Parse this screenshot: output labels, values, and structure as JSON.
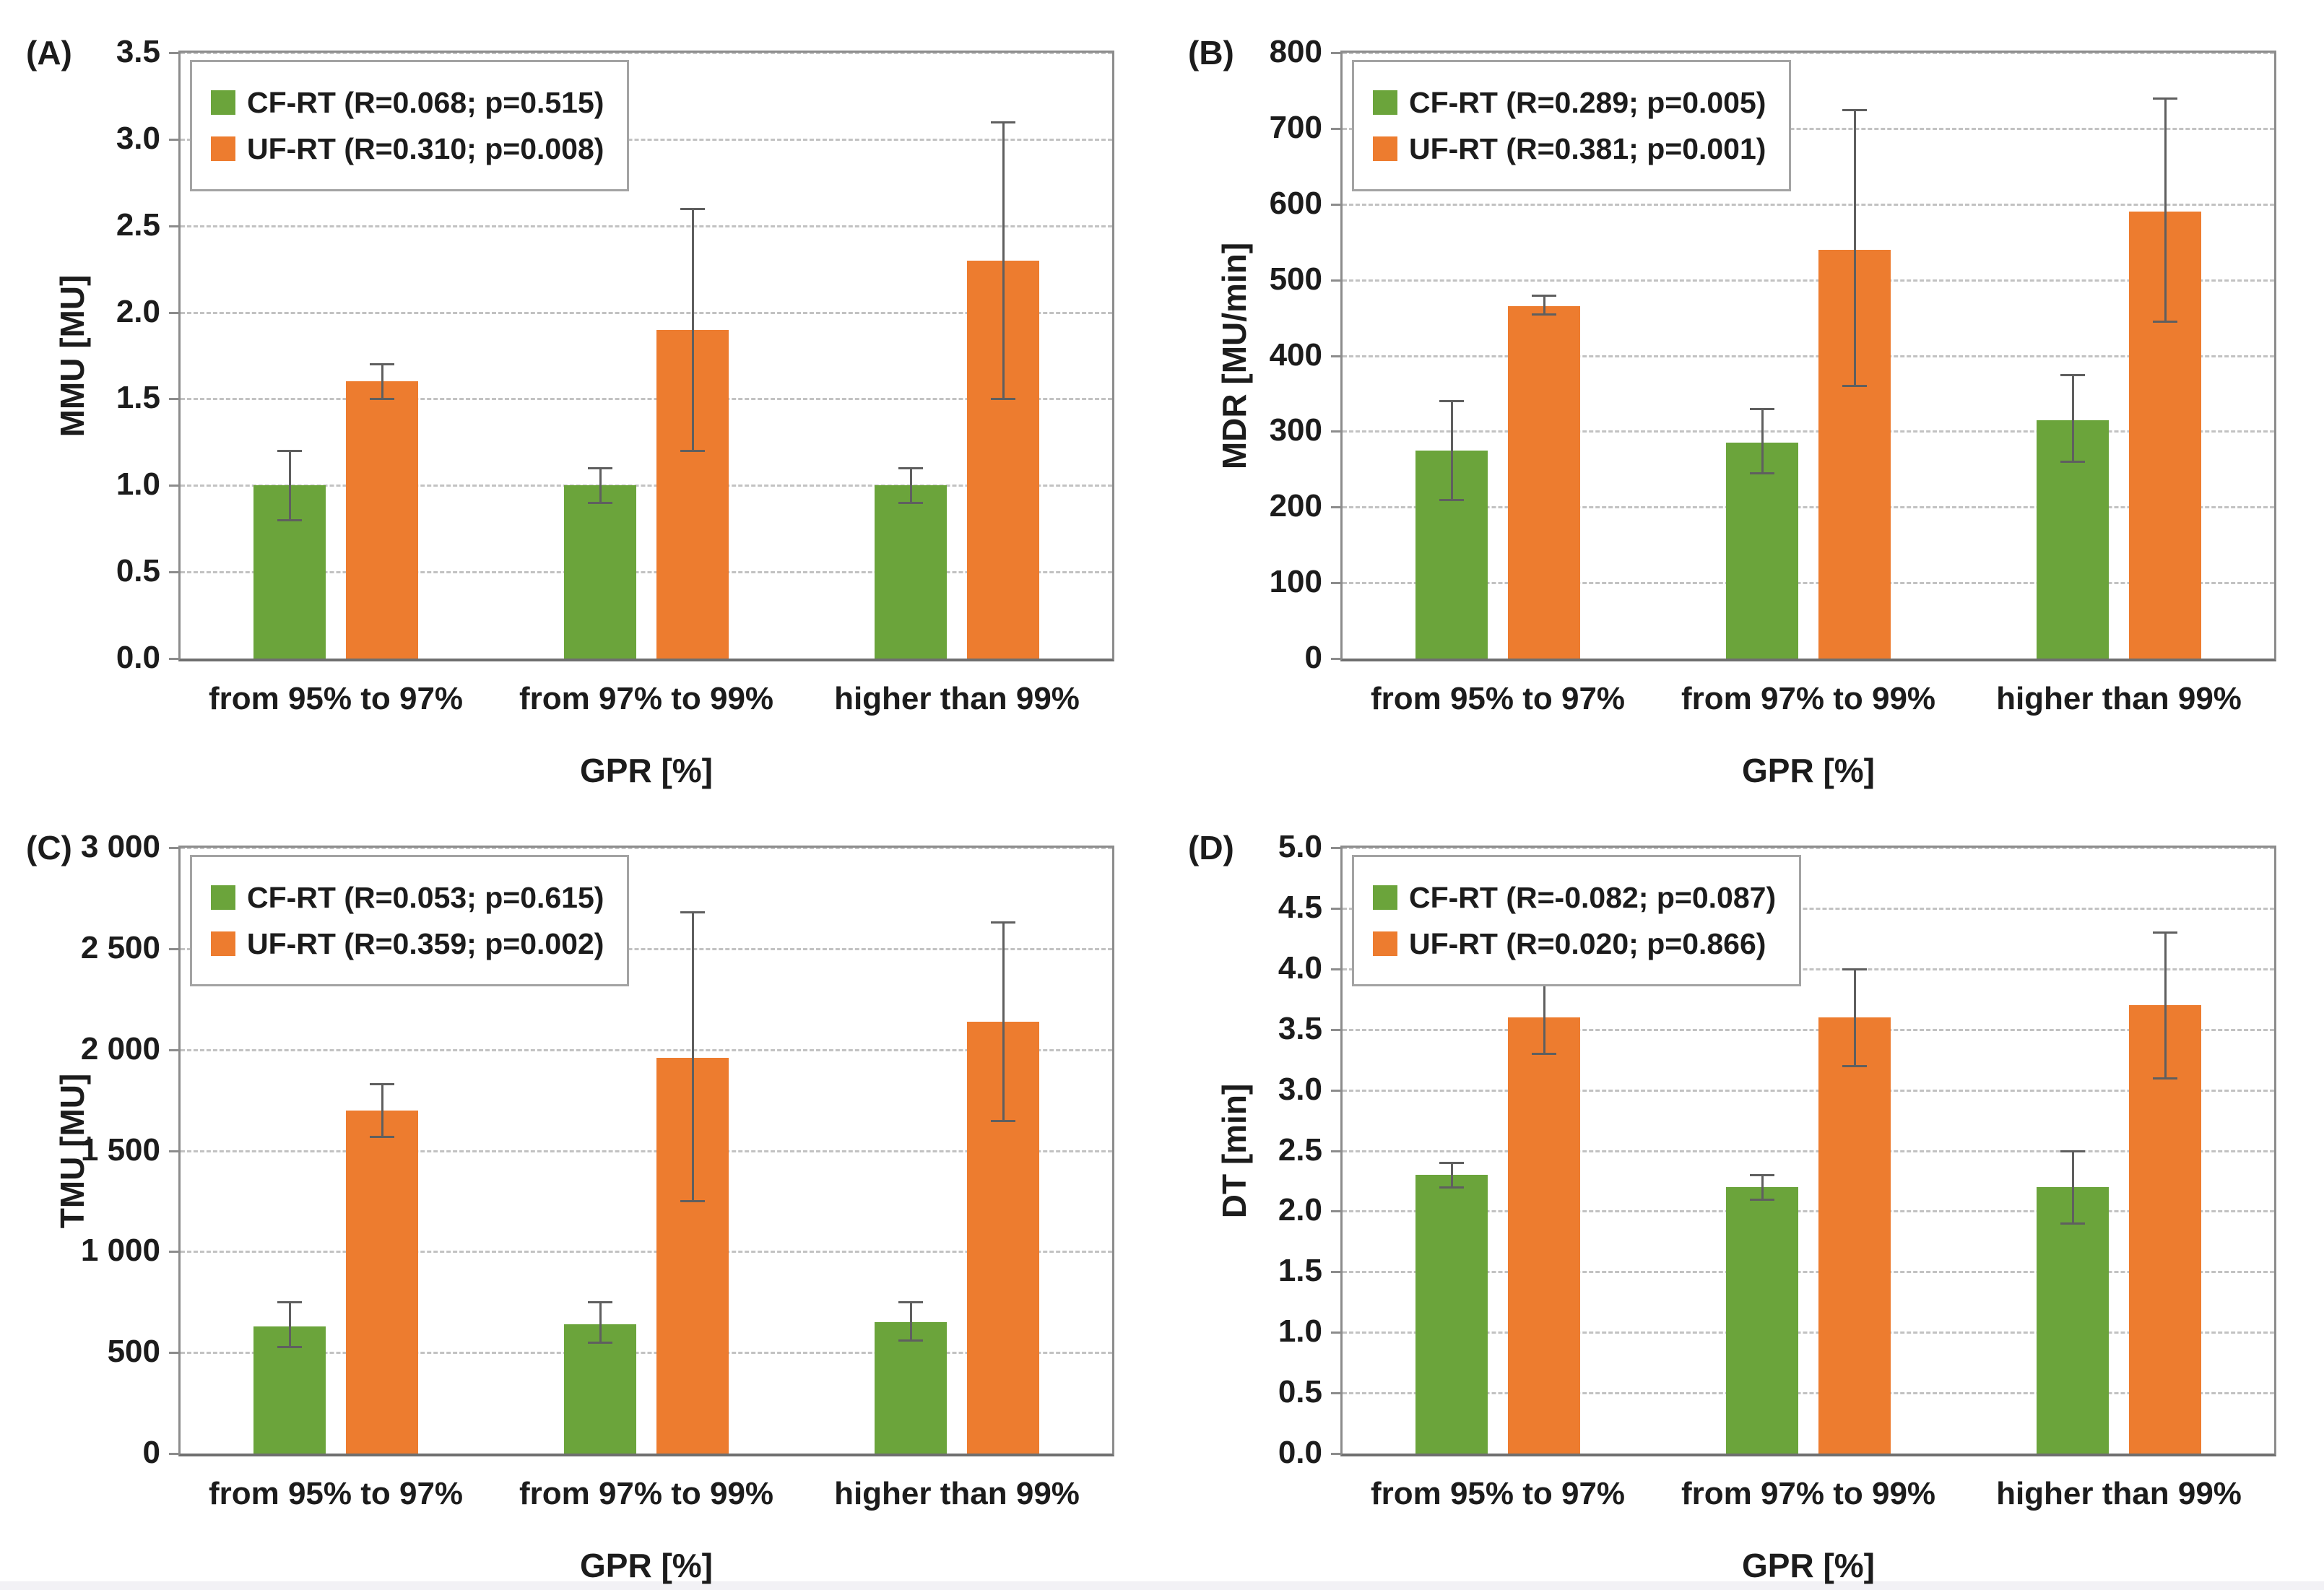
{
  "figure": {
    "x_axis_title": "GPR [%]",
    "x_categories": [
      "from 95% to 97%",
      "from 97% to 99%",
      "higher than 99%"
    ],
    "series_names": [
      "CF-RT",
      "UF-RT"
    ],
    "colors": {
      "cf_rt_green": "#6BA43B",
      "uf_rt_orange": "#ED7C2F",
      "error_bar": "#5F5F5F",
      "axis": "#8C8C8C",
      "gridline": "#C2C2C2",
      "text": "#1C1C1C"
    },
    "grid": "dashed horizontal",
    "legend_position": "top-left inside plot"
  },
  "chart_data": [
    {
      "type": "bar",
      "panel_id": "A",
      "panel_label": "(A)",
      "ylabel": "MMU [MU]",
      "xlabel": "GPR [%]",
      "ylim": [
        0,
        3.5
      ],
      "ytick_step": 0.5,
      "ytick_format": "one_decimal",
      "categories": [
        "from 95% to 97%",
        "from 97% to 99%",
        "higher than 99%"
      ],
      "legend": [
        "CF-RT (R=0.068; p=0.515)",
        "UF-RT (R=0.310; p=0.008)"
      ],
      "series": [
        {
          "name": "CF-RT",
          "values": [
            1.0,
            1.0,
            1.0
          ],
          "err_low": [
            0.8,
            0.9,
            0.9
          ],
          "err_high": [
            1.2,
            1.1,
            1.1
          ]
        },
        {
          "name": "UF-RT",
          "values": [
            1.6,
            1.9,
            2.3
          ],
          "err_low": [
            1.5,
            1.2,
            1.5
          ],
          "err_high": [
            1.7,
            2.6,
            3.1
          ]
        }
      ]
    },
    {
      "type": "bar",
      "panel_id": "B",
      "panel_label": "(B)",
      "ylabel": "MDR [MU/min]",
      "xlabel": "GPR [%]",
      "ylim": [
        0,
        800
      ],
      "ytick_step": 100,
      "ytick_format": "integer",
      "categories": [
        "from 95% to 97%",
        "from 97% to 99%",
        "higher than 99%"
      ],
      "legend": [
        "CF-RT (R=0.289; p=0.005)",
        "UF-RT (R=0.381; p=0.001)"
      ],
      "series": [
        {
          "name": "CF-RT",
          "values": [
            275,
            285,
            315
          ],
          "err_low": [
            210,
            245,
            260
          ],
          "err_high": [
            340,
            330,
            375
          ]
        },
        {
          "name": "UF-RT",
          "values": [
            465,
            540,
            590
          ],
          "err_low": [
            455,
            360,
            445
          ],
          "err_high": [
            480,
            725,
            740
          ]
        }
      ]
    },
    {
      "type": "bar",
      "panel_id": "C",
      "panel_label": "(C)",
      "ylabel": "TMU [MU]",
      "xlabel": "GPR [%]",
      "ylim": [
        0,
        3000
      ],
      "ytick_step": 500,
      "ytick_format": "thousands_space",
      "categories": [
        "from 95% to 97%",
        "from 97% to 99%",
        "higher than 99%"
      ],
      "legend": [
        "CF-RT (R=0.053; p=0.615)",
        "UF-RT (R=0.359; p=0.002)"
      ],
      "series": [
        {
          "name": "CF-RT",
          "values": [
            630,
            640,
            650
          ],
          "err_low": [
            530,
            550,
            560
          ],
          "err_high": [
            750,
            750,
            750
          ]
        },
        {
          "name": "UF-RT",
          "values": [
            1700,
            1960,
            2140
          ],
          "err_low": [
            1570,
            1250,
            1650
          ],
          "err_high": [
            1830,
            2680,
            2630
          ]
        }
      ]
    },
    {
      "type": "bar",
      "panel_id": "D",
      "panel_label": "(D)",
      "ylabel": "DT [min]",
      "xlabel": "GPR [%]",
      "ylim": [
        0,
        5.0
      ],
      "ytick_step": 0.5,
      "ytick_format": "one_decimal",
      "categories": [
        "from 95% to 97%",
        "from 97% to 99%",
        "higher than 99%"
      ],
      "legend": [
        "CF-RT (R=-0.082; p=0.087)",
        "UF-RT (R=0.020; p=0.866)"
      ],
      "series": [
        {
          "name": "CF-RT",
          "values": [
            2.3,
            2.2,
            2.2
          ],
          "err_low": [
            2.2,
            2.1,
            1.9
          ],
          "err_high": [
            2.4,
            2.3,
            2.5
          ]
        },
        {
          "name": "UF-RT",
          "values": [
            3.6,
            3.6,
            3.7
          ],
          "err_low": [
            3.3,
            3.2,
            3.1
          ],
          "err_high": [
            3.9,
            4.0,
            4.3
          ]
        }
      ]
    }
  ]
}
